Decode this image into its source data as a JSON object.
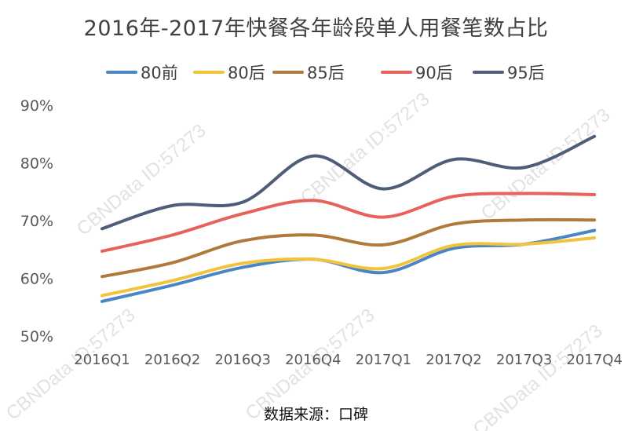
{
  "chart_data": {
    "type": "line",
    "title": "2016年-2017年快餐各年龄段单人用餐笔数占比",
    "categories": [
      "2016Q1",
      "2016Q2",
      "2016Q3",
      "2016Q4",
      "2017Q1",
      "2017Q2",
      "2017Q3",
      "2017Q4"
    ],
    "yticks": [
      "50%",
      "60%",
      "70%",
      "80%",
      "90%"
    ],
    "ylim": [
      50,
      90
    ],
    "unit": "%",
    "grid": false,
    "legend_position": "top",
    "smooth": true,
    "series": [
      {
        "name": "80前",
        "color": "#4A86C5",
        "values": [
          56.0,
          58.8,
          61.9,
          63.3,
          61.0,
          65.2,
          65.9,
          68.3
        ]
      },
      {
        "name": "80后",
        "color": "#F2C43D",
        "values": [
          57.0,
          59.6,
          62.6,
          63.3,
          61.7,
          65.7,
          65.9,
          67.0
        ]
      },
      {
        "name": "85后",
        "color": "#B07A3C",
        "values": [
          60.3,
          62.7,
          66.5,
          67.5,
          65.8,
          69.4,
          70.1,
          70.1
        ]
      },
      {
        "name": "90后",
        "color": "#E8625C",
        "values": [
          64.7,
          67.5,
          71.2,
          73.5,
          70.6,
          74.2,
          74.7,
          74.5
        ]
      },
      {
        "name": "95后",
        "color": "#4E5D78",
        "values": [
          68.6,
          72.6,
          73.2,
          81.2,
          75.5,
          80.6,
          79.2,
          84.6
        ]
      }
    ],
    "source": "数据来源：口碑"
  },
  "watermark": "CBNData ID:57273"
}
